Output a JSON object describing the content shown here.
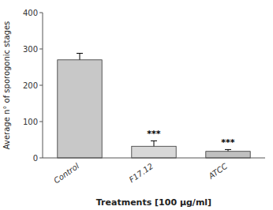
{
  "chart_data": {
    "type": "bar",
    "categories": [
      "Control",
      "F17.12",
      "ATCC"
    ],
    "values": [
      270,
      32,
      18
    ],
    "errors": [
      18,
      15,
      5
    ],
    "annotations": [
      null,
      "***",
      "***"
    ],
    "colors": [
      "#c8c8c8",
      "#d8d8d8",
      "#c0c0c0"
    ],
    "xlabel": "Treatments [100  μg/ml]",
    "ylabel": "Average n° of sporogonic stages",
    "ylim": [
      0,
      400
    ],
    "yticks": [
      0,
      100,
      200,
      300,
      400
    ],
    "grid": false
  }
}
